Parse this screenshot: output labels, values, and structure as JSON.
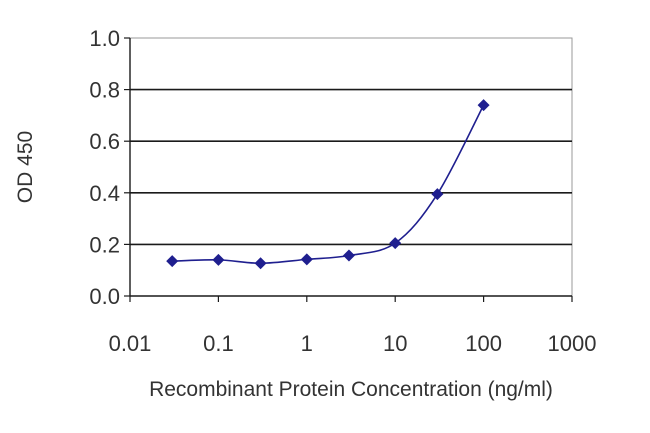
{
  "chart_data": {
    "type": "line",
    "title": "",
    "xlabel": "Recombinant Protein Concentration (ng/ml)",
    "ylabel": "OD 450",
    "x_scale": "log",
    "xlim": [
      0.01,
      1000
    ],
    "ylim": [
      0,
      1.0
    ],
    "x_ticks": [
      0.01,
      0.1,
      1,
      10,
      100,
      1000
    ],
    "x_tick_labels": [
      "0.01",
      "0.1",
      "1",
      "10",
      "100",
      "1000"
    ],
    "y_ticks": [
      0,
      0.2,
      0.4,
      0.6,
      0.8,
      1.0
    ],
    "y_tick_labels": [
      "0.0",
      "0.2",
      "0.4",
      "0.6",
      "0.8",
      "1.0"
    ],
    "grid": "horizontal",
    "series": [
      {
        "color": "#1f1f8f",
        "marker": "diamond",
        "x": [
          0.03,
          0.1,
          0.3,
          1,
          3,
          10,
          30,
          100
        ],
        "y": [
          0.135,
          0.14,
          0.127,
          0.142,
          0.157,
          0.205,
          0.395,
          0.74
        ]
      }
    ]
  }
}
